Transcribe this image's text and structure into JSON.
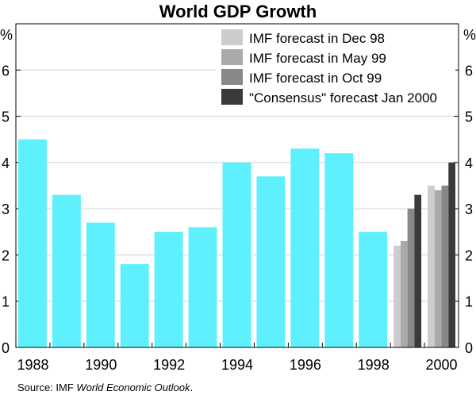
{
  "chart_data": {
    "type": "bar",
    "title": "World GDP Growth",
    "ylabel_left": "%",
    "ylabel_right": "%",
    "ylim": [
      0,
      7
    ],
    "yticks": [
      0,
      1,
      2,
      3,
      4,
      5,
      6
    ],
    "grid": true,
    "legend_position": "top-right",
    "categories": [
      "1988",
      "1989",
      "1990",
      "1991",
      "1992",
      "1993",
      "1994",
      "1995",
      "1996",
      "1997",
      "1998",
      "1999",
      "2000"
    ],
    "xtick_labels": [
      "1988",
      "1990",
      "1992",
      "1994",
      "1996",
      "1998",
      "2000"
    ],
    "actual": {
      "color": "#5ef0fc",
      "values": [
        4.5,
        3.3,
        2.7,
        1.8,
        2.5,
        2.6,
        4.0,
        3.7,
        4.3,
        4.2,
        2.5,
        null,
        null
      ]
    },
    "series": [
      {
        "name": "IMF forecast in Dec 98",
        "color": "#cccccc",
        "values": {
          "1999": 2.2,
          "2000": 3.5
        }
      },
      {
        "name": "IMF forecast in May 99",
        "color": "#aaaaaa",
        "values": {
          "1999": 2.3,
          "2000": 3.4
        }
      },
      {
        "name": "IMF forecast in Oct 99",
        "color": "#888888",
        "values": {
          "1999": 3.0,
          "2000": 3.5
        }
      },
      {
        "name": "\"Consensus\" forecast Jan 2000",
        "color": "#3a3a3a",
        "values": {
          "1999": 3.3,
          "2000": 4.0
        }
      }
    ],
    "source_prefix": "Source:  IMF ",
    "source_italic": "World Economic Outlook",
    "source_suffix": "."
  }
}
